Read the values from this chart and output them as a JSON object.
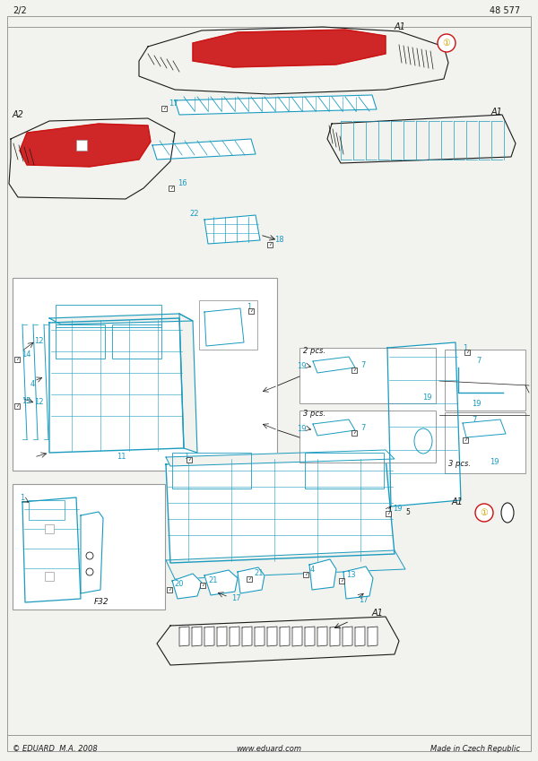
{
  "page_num_left": "2/2",
  "page_num_right": "48 577",
  "footer_left": "© EDUARD  M.A. 2008",
  "footer_center": "www.eduard.com",
  "footer_right": "Made in Czech Republic",
  "bg_color": "#f2f2ee",
  "border_color": "#777777",
  "cyan_color": "#1a9bbf",
  "red_color": "#cc1111",
  "dark_color": "#1a1a1a",
  "yellow_color": "#d4a000",
  "gray_color": "#999999"
}
